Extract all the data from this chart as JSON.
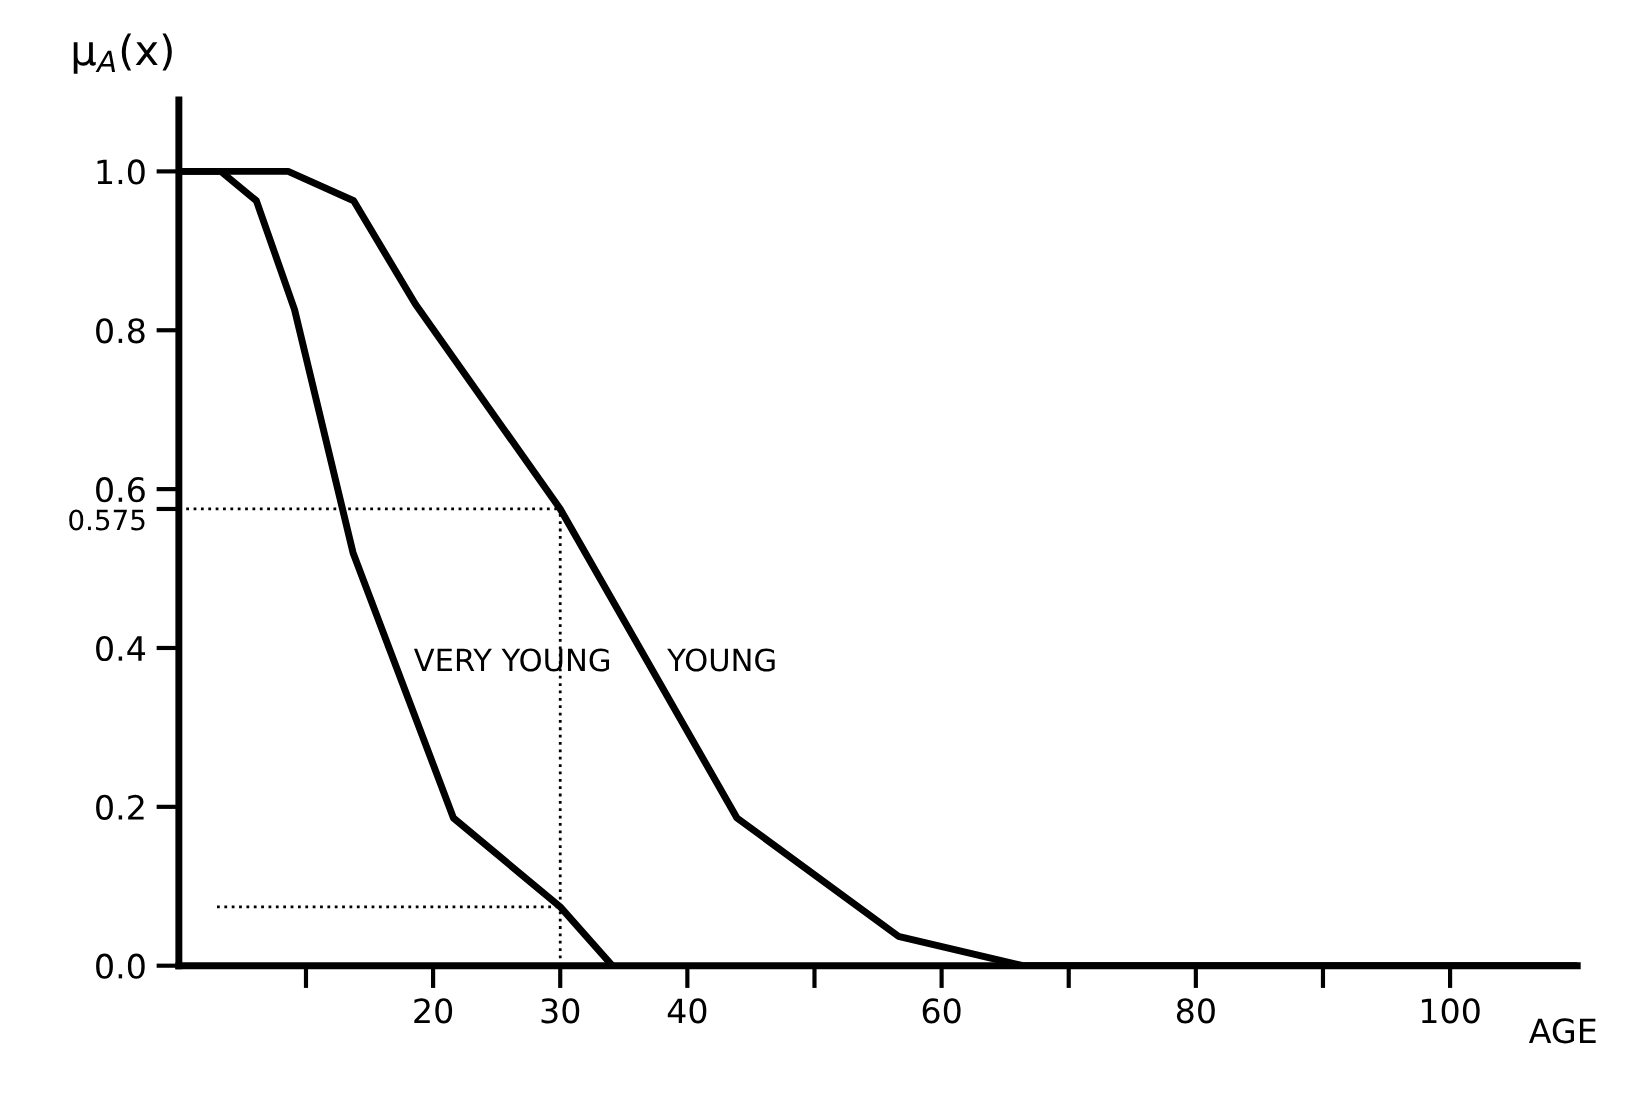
{
  "chart_data": {
    "type": "line",
    "xlabel": "AGE",
    "ylabel": "μ$_{A}$(x)",
    "xlim": [
      0,
      110
    ],
    "ylim": [
      0,
      1.09
    ],
    "xticks": [
      {
        "value": 10,
        "label": null
      },
      20,
      30,
      40,
      {
        "value": 50,
        "label": null
      },
      60,
      {
        "value": 70,
        "label": null
      },
      80,
      {
        "value": 90,
        "label": null
      },
      100
    ],
    "yticks": [
      {
        "value": 0,
        "label": "0.0"
      },
      0.2,
      0.4,
      0.575,
      0.6,
      0.8,
      {
        "value": 1,
        "label": "1.0"
      }
    ],
    "grid": false,
    "legend": false,
    "marker": "none",
    "line_style": "solid",
    "series": [
      {
        "name": "VERY YOUNG",
        "color": "#000000",
        "x": [
          0,
          3.3,
          6.1,
          9.1,
          13.7,
          21.6,
          30,
          34.1
        ],
        "values": [
          1,
          1,
          0.963,
          0.826,
          0.52,
          0.186,
          0.074,
          0
        ]
      },
      {
        "name": "YOUNG",
        "color": "#000000",
        "x": [
          0,
          8.6,
          13.75,
          18.6,
          30,
          43.9,
          56.6,
          66.4,
          110
        ],
        "values": [
          1,
          1,
          0.963,
          0.833,
          0.575,
          0.186,
          0.037,
          0,
          0
        ]
      },
      {
        "color": "#000000",
        "line_style": "dotted",
        "x": [
          0,
          30
        ],
        "values": [
          0.575,
          0.575
        ]
      },
      {
        "color": "#000000",
        "line_style": "dotted",
        "x": [
          30,
          30
        ],
        "values": [
          0,
          0.575
        ]
      },
      {
        "color": "#000000",
        "line_style": "dotted",
        "x": [
          3,
          30
        ],
        "values": [
          0.074,
          0.074
        ]
      }
    ]
  }
}
